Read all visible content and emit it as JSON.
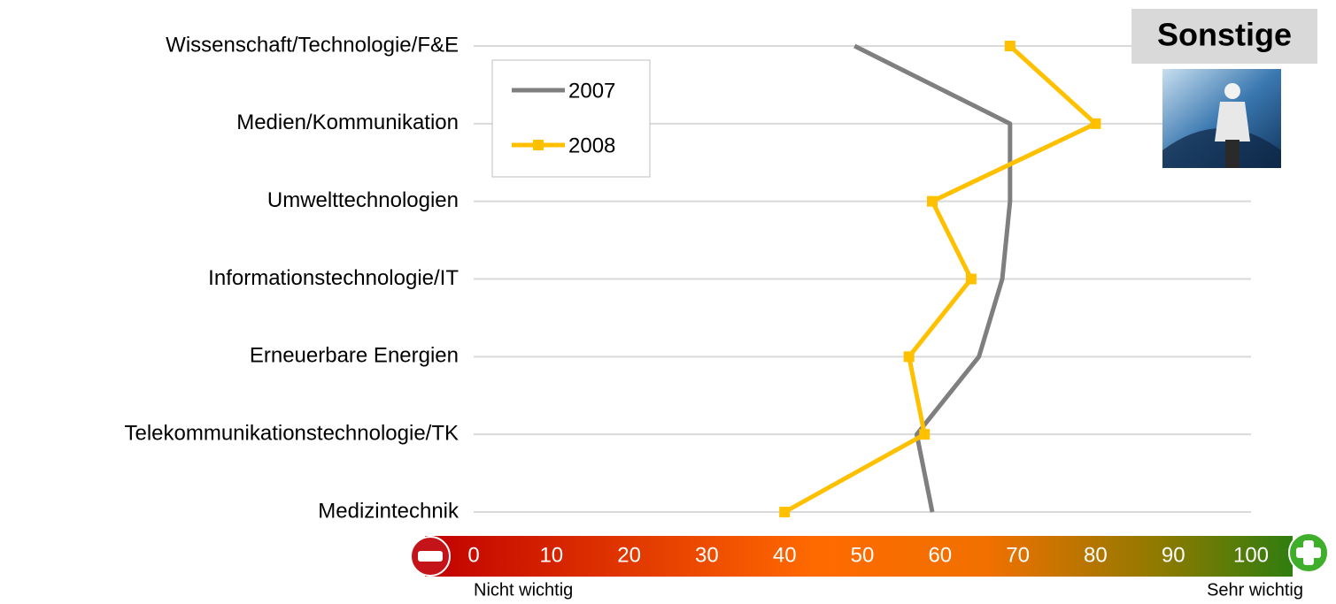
{
  "chart_data": {
    "type": "line",
    "badge": "Sonstige",
    "categories": [
      "Wissenschaft/Technologie/F&E",
      "Medien/Kommunikation",
      "Umwelttechnologien",
      "Informationstechnologie/IT",
      "Erneuerbare Energien",
      "Telekommunikationstechnologie/TK",
      "Medizintechnik"
    ],
    "series": [
      {
        "name": "2007",
        "color": "#7f7f7f",
        "marker": "none",
        "values": [
          49,
          69,
          69,
          68,
          65,
          57,
          59
        ]
      },
      {
        "name": "2008",
        "color": "#ffc000",
        "marker": "square",
        "values": [
          69,
          80,
          59,
          64,
          56,
          58,
          40
        ]
      }
    ],
    "xlim": [
      0,
      100
    ],
    "xticks": [
      0,
      10,
      20,
      30,
      40,
      50,
      60,
      70,
      80,
      90,
      100
    ],
    "annotations": [
      "Nicht wichtig",
      "Sehr wichtig"
    ],
    "grid": true,
    "legend": "upper left"
  }
}
